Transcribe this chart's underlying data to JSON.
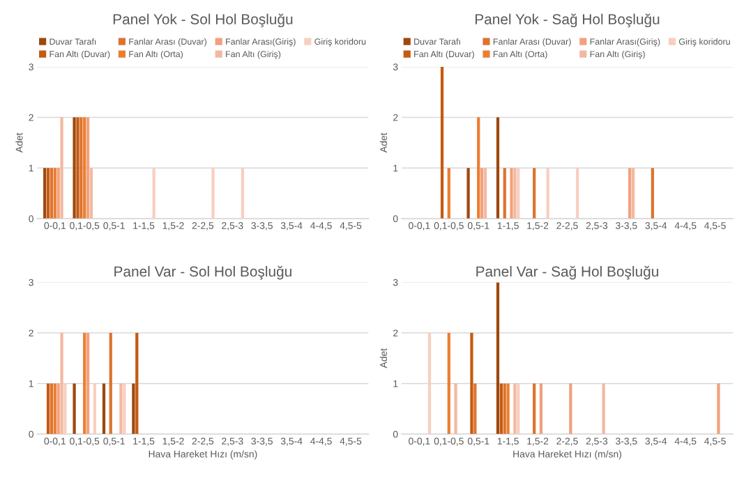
{
  "chart_data": [
    {
      "type": "bar",
      "title": "Panel Yok - Sol Hol Boşluğu",
      "ylabel": "Adet",
      "categories": [
        "0-0,1",
        "0,1-0,5",
        "0,5-1",
        "1-1,5",
        "1,5-2",
        "2-2,5",
        "2,5-3",
        "3-3,5",
        "3,5-4",
        "4-4,5",
        "4,5-5"
      ],
      "ylim": [
        0,
        3
      ],
      "yticks": [
        0,
        1,
        2,
        3
      ],
      "grid": "y",
      "legend": "top",
      "series": [
        {
          "name": "Duvar Tarafı",
          "color": "#9e480e",
          "values": [
            1,
            2,
            0,
            0,
            0,
            0,
            0,
            0,
            0,
            0,
            0
          ]
        },
        {
          "name": "Fan Altı (Duvar)",
          "color": "#c55a11",
          "values": [
            1,
            2,
            0,
            0,
            0,
            0,
            0,
            0,
            0,
            0,
            0
          ]
        },
        {
          "name": "Fanlar Arası (Duvar)",
          "color": "#dc7430",
          "values": [
            1,
            2,
            0,
            0,
            0,
            0,
            0,
            0,
            0,
            0,
            0
          ]
        },
        {
          "name": "Fan Altı (Orta)",
          "color": "#ed7d31",
          "values": [
            1,
            2,
            0,
            0,
            0,
            0,
            0,
            0,
            0,
            0,
            0
          ]
        },
        {
          "name": "Fanlar Arası(Giriş)",
          "color": "#f1a17c",
          "values": [
            1,
            2,
            0,
            0,
            0,
            0,
            0,
            0,
            0,
            0,
            0
          ]
        },
        {
          "name": "Fan Altı (Giriş)",
          "color": "#f4b8a0",
          "values": [
            2,
            1,
            0,
            0,
            0,
            0,
            0,
            0,
            0,
            0,
            0
          ]
        },
        {
          "name": "Giriş koridoru",
          "color": "#f8cfc0",
          "values": [
            0,
            0,
            0,
            1,
            0,
            1,
            1,
            0,
            0,
            0,
            0
          ]
        }
      ]
    },
    {
      "type": "bar",
      "title": "Panel Yok - Sağ Hol Boşluğu",
      "ylabel": "Adet",
      "categories": [
        "0-0,1",
        "0,1-0,5",
        "0,5-1",
        "1-1,5",
        "1,5-2",
        "2-2,5",
        "2,5-3",
        "3-3,5",
        "3,5-4",
        "4-4,5",
        "4,5-5"
      ],
      "ylim": [
        0,
        3
      ],
      "yticks": [
        0,
        1,
        2,
        3
      ],
      "grid": "y",
      "legend": "top",
      "series": [
        {
          "name": "Duvar Tarafı",
          "color": "#9e480e",
          "values": [
            0,
            0,
            1,
            2,
            0,
            0,
            0,
            0,
            0,
            0,
            0
          ]
        },
        {
          "name": "Fan Altı (Duvar)",
          "color": "#c55a11",
          "values": [
            0,
            3,
            0,
            0,
            0,
            0,
            0,
            0,
            0,
            0,
            0
          ]
        },
        {
          "name": "Fanlar Arası (Duvar)",
          "color": "#dc7430",
          "values": [
            0,
            0,
            0,
            1,
            1,
            0,
            0,
            0,
            1,
            0,
            0
          ]
        },
        {
          "name": "Fan Altı (Orta)",
          "color": "#ed7d31",
          "values": [
            0,
            1,
            2,
            0,
            0,
            0,
            0,
            0,
            0,
            0,
            0
          ]
        },
        {
          "name": "Fanlar Arası(Giriş)",
          "color": "#f1a17c",
          "values": [
            0,
            0,
            1,
            1,
            0,
            0,
            0,
            1,
            0,
            0,
            0
          ]
        },
        {
          "name": "Fan Altı (Giriş)",
          "color": "#f4b8a0",
          "values": [
            0,
            0,
            1,
            1,
            0,
            0,
            0,
            1,
            0,
            0,
            0
          ]
        },
        {
          "name": "Giriş koridoru",
          "color": "#f8cfc0",
          "values": [
            0,
            0,
            0,
            1,
            1,
            1,
            0,
            0,
            0,
            0,
            0
          ]
        }
      ]
    },
    {
      "type": "bar",
      "title": "Panel Var - Sol Hol Boşluğu",
      "xlabel": "Hava Hareket Hızı (m/sn)",
      "categories": [
        "0-0,1",
        "0,1-0,5",
        "0,5-1",
        "1-1,5",
        "1,5-2",
        "2-2,5",
        "2,5-3",
        "3-3,5",
        "3,5-4",
        "4-4,5",
        "4,5-5"
      ],
      "ylim": [
        0,
        3
      ],
      "yticks": [
        0,
        1,
        2,
        3
      ],
      "grid": "y",
      "series": [
        {
          "color": "#9e480e",
          "values": [
            0,
            1,
            1,
            1,
            0,
            0,
            0,
            0,
            0,
            0,
            0
          ]
        },
        {
          "color": "#c55a11",
          "values": [
            1,
            0,
            0,
            2,
            0,
            0,
            0,
            0,
            0,
            0,
            0
          ]
        },
        {
          "color": "#dc7430",
          "values": [
            1,
            0,
            2,
            0,
            0,
            0,
            0,
            0,
            0,
            0,
            0
          ]
        },
        {
          "color": "#ed7d31",
          "values": [
            1,
            2,
            0,
            0,
            0,
            0,
            0,
            0,
            0,
            0,
            0
          ]
        },
        {
          "color": "#f1a17c",
          "values": [
            1,
            2,
            0,
            0,
            0,
            0,
            0,
            0,
            0,
            0,
            0
          ]
        },
        {
          "color": "#f4b8a0",
          "values": [
            2,
            0,
            1,
            0,
            0,
            0,
            0,
            0,
            0,
            0,
            0
          ]
        },
        {
          "color": "#f8cfc0",
          "values": [
            1,
            1,
            1,
            0,
            0,
            0,
            0,
            0,
            0,
            0,
            0
          ]
        }
      ]
    },
    {
      "type": "bar",
      "title": "Panel Var - Sağ Hol Boşluğu",
      "xlabel": "Hava Hareket Hızı (m/sn)",
      "ylabel": "Adet",
      "categories": [
        "0-0,1",
        "0,1-0,5",
        "0,5-1",
        "1-1,5",
        "1,5-2",
        "2-2,5",
        "2,5-3",
        "3-3,5",
        "3,5-4",
        "4-4,5",
        "4,5-5"
      ],
      "ylim": [
        0,
        3
      ],
      "yticks": [
        0,
        1,
        2,
        3
      ],
      "grid": "y",
      "series": [
        {
          "color": "#9e480e",
          "values": [
            0,
            0,
            0,
            3,
            0,
            0,
            0,
            0,
            0,
            0,
            0
          ]
        },
        {
          "color": "#c55a11",
          "values": [
            0,
            0,
            2,
            1,
            0,
            0,
            0,
            0,
            0,
            0,
            0
          ]
        },
        {
          "color": "#dc7430",
          "values": [
            0,
            0,
            1,
            1,
            1,
            0,
            0,
            0,
            0,
            0,
            0
          ]
        },
        {
          "color": "#ed7d31",
          "values": [
            0,
            2,
            0,
            1,
            0,
            0,
            0,
            0,
            0,
            0,
            0
          ]
        },
        {
          "color": "#f1a17c",
          "values": [
            0,
            0,
            0,
            0,
            1,
            1,
            0,
            0,
            0,
            0,
            1
          ]
        },
        {
          "color": "#f4b8a0",
          "values": [
            0,
            1,
            0,
            1,
            0,
            0,
            1,
            0,
            0,
            0,
            0
          ]
        },
        {
          "color": "#f8cfc0",
          "values": [
            2,
            0,
            0,
            1,
            0,
            0,
            0,
            0,
            0,
            0,
            0
          ]
        }
      ]
    }
  ]
}
